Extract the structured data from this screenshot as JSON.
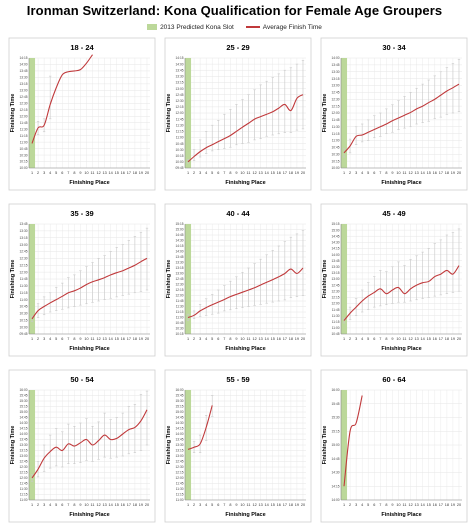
{
  "title": "Ironman Switzerland: Kona Qualification for Female Age Groupers",
  "legend": {
    "slot_label": "2013 Predicted Kona Slot",
    "avg_label": "Average Finish Time"
  },
  "colors": {
    "slot": "#bcd89a",
    "avg_line": "#c0393b",
    "errbar": "#c9c9c9",
    "grid": "#e6e6e6",
    "border": "#cfcfcf"
  },
  "chart_data": [
    {
      "type": "line",
      "title": "18 - 24",
      "xlabel": "Finishing Place",
      "ylabel": "Finishing Time",
      "x": [
        1,
        2,
        3,
        4,
        5,
        6,
        7,
        8,
        9,
        10,
        11
      ],
      "slot_place": 1,
      "y_ticks": [
        "10:00",
        "10:15",
        "10:30",
        "10:45",
        "11:00",
        "11:15",
        "11:30",
        "11:45",
        "12:00",
        "12:15",
        "12:30",
        "12:45",
        "13:00",
        "13:15",
        "13:30",
        "13:45",
        "14:00",
        "14:15"
      ],
      "avg": [
        10.95,
        11.55,
        11.65,
        12.45,
        13.1,
        13.6,
        13.72,
        13.75,
        13.8,
        14.05,
        14.38
      ],
      "low": [
        10.95,
        11.3,
        11.4,
        11.9,
        null,
        null,
        null,
        null,
        null,
        null,
        null
      ],
      "high": [
        10.95,
        11.8,
        11.9,
        13.55,
        null,
        null,
        null,
        null,
        null,
        null,
        null
      ]
    },
    {
      "type": "line",
      "title": "25 - 29",
      "xlabel": "Finishing Place",
      "ylabel": "Finishing Time",
      "x": [
        1,
        2,
        3,
        4,
        5,
        6,
        7,
        8,
        9,
        10,
        11,
        12,
        13,
        14,
        15,
        16,
        17,
        18,
        19,
        20
      ],
      "slot_place": 1,
      "y_ticks": [
        "09:45",
        "10:00",
        "10:15",
        "10:30",
        "10:45",
        "11:00",
        "11:15",
        "11:30",
        "11:45",
        "12:00",
        "12:15",
        "12:30",
        "12:45",
        "13:00",
        "13:15",
        "13:30",
        "13:45",
        "14:00",
        "14:15"
      ],
      "avg": [
        10.0,
        10.22,
        10.42,
        10.58,
        10.7,
        10.83,
        10.95,
        11.08,
        11.25,
        11.42,
        11.58,
        11.75,
        11.85,
        11.95,
        12.05,
        12.2,
        12.35,
        12.1,
        12.6,
        12.75
      ],
      "low": [
        9.95,
        10.05,
        10.2,
        10.35,
        10.45,
        10.5,
        10.55,
        10.6,
        10.7,
        10.75,
        10.8,
        10.9,
        10.95,
        11.05,
        11.1,
        11.15,
        11.2,
        11.2,
        11.3,
        11.35
      ],
      "high": [
        10.1,
        10.5,
        10.9,
        11.25,
        11.5,
        11.7,
        11.95,
        12.15,
        12.35,
        12.55,
        12.75,
        12.95,
        13.15,
        13.3,
        13.45,
        13.6,
        13.75,
        13.85,
        14.0,
        14.15
      ]
    },
    {
      "type": "line",
      "title": "30 - 34",
      "xlabel": "Finishing Place",
      "ylabel": "Finishing Time",
      "x": [
        1,
        2,
        3,
        4,
        5,
        6,
        7,
        8,
        9,
        10,
        11,
        12,
        13,
        14,
        15,
        16,
        17,
        18,
        19,
        20
      ],
      "slot_place": 1,
      "y_ticks": [
        "10:00",
        "10:15",
        "10:30",
        "10:45",
        "11:00",
        "11:15",
        "11:30",
        "11:45",
        "12:00",
        "12:15",
        "12:30",
        "12:45",
        "13:00",
        "13:15",
        "13:30",
        "13:45",
        "14:00"
      ],
      "avg": [
        10.55,
        10.8,
        11.15,
        11.2,
        11.3,
        11.4,
        11.5,
        11.6,
        11.72,
        11.82,
        11.92,
        12.02,
        12.15,
        12.25,
        12.38,
        12.5,
        12.65,
        12.8,
        12.92,
        13.05
      ],
      "low": [
        10.4,
        10.55,
        10.85,
        10.95,
        11.0,
        11.1,
        11.15,
        11.25,
        11.3,
        11.4,
        11.45,
        11.5,
        11.6,
        11.65,
        11.7,
        11.8,
        11.85,
        11.95,
        12.0,
        12.05
      ],
      "high": [
        10.7,
        11.05,
        11.5,
        11.6,
        11.75,
        11.9,
        12.0,
        12.15,
        12.3,
        12.45,
        12.6,
        12.75,
        12.9,
        13.05,
        13.2,
        13.35,
        13.5,
        13.65,
        13.8,
        13.95
      ]
    },
    {
      "type": "line",
      "title": "35 - 39",
      "xlabel": "Finishing Place",
      "ylabel": "Finishing Time",
      "x": [
        1,
        2,
        3,
        4,
        5,
        6,
        7,
        8,
        9,
        10,
        11,
        12,
        13,
        14,
        15,
        16,
        17,
        18,
        19,
        20
      ],
      "slot_place": 1,
      "y_ticks": [
        "09:45",
        "10:00",
        "10:15",
        "10:30",
        "10:45",
        "11:00",
        "11:15",
        "11:30",
        "11:45",
        "12:00",
        "12:15",
        "12:30",
        "12:45",
        "13:00",
        "13:15",
        "13:30",
        "13:45"
      ],
      "avg": [
        10.3,
        10.6,
        10.75,
        10.88,
        11.0,
        11.12,
        11.25,
        11.32,
        11.42,
        11.55,
        11.65,
        11.72,
        11.8,
        11.9,
        11.98,
        12.05,
        12.15,
        12.25,
        12.38,
        12.5
      ],
      "low": [
        10.2,
        10.35,
        10.45,
        10.55,
        10.6,
        10.65,
        10.7,
        10.75,
        10.8,
        10.85,
        10.9,
        10.95,
        11.0,
        11.05,
        11.1,
        11.15,
        11.2,
        11.25,
        11.3,
        11.35
      ],
      "high": [
        10.4,
        10.85,
        11.1,
        11.25,
        11.45,
        11.6,
        11.8,
        11.9,
        12.05,
        12.2,
        12.35,
        12.5,
        12.6,
        12.75,
        12.9,
        13.0,
        13.15,
        13.3,
        13.45,
        13.6
      ]
    },
    {
      "type": "line",
      "title": "40 - 44",
      "xlabel": "Finishing Place",
      "ylabel": "Finishing Time",
      "x": [
        1,
        2,
        3,
        4,
        5,
        6,
        7,
        8,
        9,
        10,
        11,
        12,
        13,
        14,
        15,
        16,
        17,
        18,
        19,
        20
      ],
      "slot_place": 1,
      "y_ticks": [
        "10:15",
        "10:30",
        "10:45",
        "11:00",
        "11:15",
        "11:30",
        "11:45",
        "12:00",
        "12:15",
        "12:30",
        "12:45",
        "13:00",
        "13:15",
        "13:30",
        "13:45",
        "14:00",
        "14:15",
        "14:30",
        "14:45",
        "15:00",
        "15:15"
      ],
      "avg": [
        11.0,
        11.1,
        11.3,
        11.45,
        11.58,
        11.7,
        11.82,
        11.95,
        12.05,
        12.15,
        12.25,
        12.35,
        12.48,
        12.6,
        12.72,
        12.85,
        13.0,
        13.2,
        13.0,
        13.25
      ],
      "low": [
        10.85,
        10.95,
        11.05,
        11.1,
        11.15,
        11.2,
        11.3,
        11.35,
        11.4,
        11.45,
        11.5,
        11.55,
        11.6,
        11.65,
        11.7,
        11.75,
        11.8,
        11.9,
        11.95,
        12.0
      ],
      "high": [
        11.15,
        11.3,
        11.6,
        11.85,
        12.05,
        12.25,
        12.45,
        12.65,
        12.85,
        13.05,
        13.25,
        13.45,
        13.65,
        13.85,
        14.05,
        14.25,
        14.45,
        14.65,
        14.8,
        14.95
      ]
    },
    {
      "type": "line",
      "title": "45 - 49",
      "xlabel": "Finishing Place",
      "ylabel": "Finishing Time",
      "x": [
        1,
        2,
        3,
        4,
        5,
        6,
        7,
        8,
        9,
        10,
        11,
        12,
        13,
        14,
        15,
        16,
        17,
        18,
        19,
        20
      ],
      "slot_place": 1,
      "y_ticks": [
        "10:45",
        "11:00",
        "11:15",
        "11:30",
        "11:45",
        "12:00",
        "12:15",
        "12:30",
        "12:45",
        "13:00",
        "13:15",
        "13:30",
        "13:45",
        "14:00",
        "14:15",
        "14:30",
        "14:45",
        "15:00",
        "15:15"
      ],
      "avg": [
        11.3,
        11.6,
        11.85,
        12.1,
        12.3,
        12.45,
        12.6,
        12.4,
        12.55,
        12.65,
        12.4,
        12.6,
        12.75,
        12.85,
        12.9,
        13.1,
        13.2,
        13.35,
        13.2,
        13.55
      ],
      "low": [
        11.2,
        11.35,
        11.5,
        11.65,
        11.75,
        11.85,
        11.9,
        11.95,
        12.0,
        12.05,
        12.05,
        12.1,
        12.15,
        12.2,
        12.25,
        12.3,
        12.35,
        12.4,
        12.45,
        12.5
      ],
      "high": [
        11.4,
        11.85,
        12.2,
        12.55,
        12.85,
        13.1,
        13.35,
        13.3,
        13.5,
        13.7,
        13.55,
        13.8,
        13.95,
        14.1,
        14.25,
        14.45,
        14.6,
        14.8,
        14.9,
        15.05
      ]
    },
    {
      "type": "line",
      "title": "50 - 54",
      "xlabel": "Finishing Place",
      "ylabel": "Finishing Time",
      "x": [
        1,
        2,
        3,
        4,
        5,
        6,
        7,
        8,
        9,
        10,
        11,
        12,
        13,
        14,
        15,
        16,
        17,
        18,
        19,
        20
      ],
      "slot_place": 1,
      "y_ticks": [
        "11:00",
        "11:15",
        "11:30",
        "11:45",
        "12:00",
        "12:15",
        "12:30",
        "12:45",
        "13:00",
        "13:15",
        "13:30",
        "13:45",
        "14:00",
        "14:15",
        "14:30",
        "14:45",
        "15:00",
        "15:15",
        "15:30",
        "15:45",
        "16:00"
      ],
      "avg": [
        12.0,
        12.4,
        12.9,
        13.2,
        13.4,
        13.25,
        13.55,
        13.45,
        13.6,
        13.75,
        13.5,
        13.7,
        13.95,
        13.75,
        13.8,
        14.0,
        14.2,
        14.3,
        14.6,
        15.1
      ],
      "low": [
        11.85,
        12.05,
        12.3,
        12.45,
        12.55,
        12.5,
        12.65,
        12.65,
        12.7,
        12.8,
        12.75,
        12.85,
        12.95,
        12.9,
        12.95,
        13.0,
        13.1,
        13.15,
        13.25,
        13.5
      ],
      "high": [
        12.15,
        12.75,
        13.5,
        13.95,
        14.25,
        14.1,
        14.45,
        14.35,
        14.5,
        14.7,
        14.35,
        14.55,
        14.95,
        14.65,
        14.75,
        14.95,
        15.25,
        15.35,
        15.8,
        15.95
      ]
    },
    {
      "type": "line",
      "title": "55 - 59",
      "xlabel": "Finishing Place",
      "ylabel": "Finishing Time",
      "x": [
        1,
        2,
        3,
        4,
        5
      ],
      "slot_place": 1,
      "y_ticks": [
        "11:00",
        "11:15",
        "11:30",
        "11:45",
        "12:00",
        "12:15",
        "12:30",
        "12:45",
        "13:00",
        "13:15",
        "13:30",
        "13:45",
        "14:00",
        "14:15",
        "14:30",
        "14:45",
        "15:00",
        "15:15",
        "15:30",
        "15:45",
        "16:00"
      ],
      "avg": [
        13.3,
        13.4,
        13.55,
        14.3,
        15.3
      ],
      "low": [
        13.3,
        13.15,
        13.15,
        13.7,
        14.8
      ],
      "high": [
        13.3,
        13.65,
        13.95,
        14.85,
        15.75
      ]
    },
    {
      "type": "line",
      "title": "60 - 64",
      "xlabel": "Finishing Place",
      "ylabel": "Finishing Time",
      "x": [
        1,
        2,
        3,
        4
      ],
      "slot_place": 1,
      "y_ticks": [
        "14:00",
        "14:15",
        "14:30",
        "14:45",
        "15:00",
        "15:15",
        "15:30",
        "15:45",
        "16:00"
      ],
      "avg": [
        14.25,
        15.25,
        15.4,
        15.9
      ],
      "low": [
        null,
        null,
        null,
        null
      ],
      "high": [
        null,
        null,
        null,
        null
      ]
    }
  ]
}
